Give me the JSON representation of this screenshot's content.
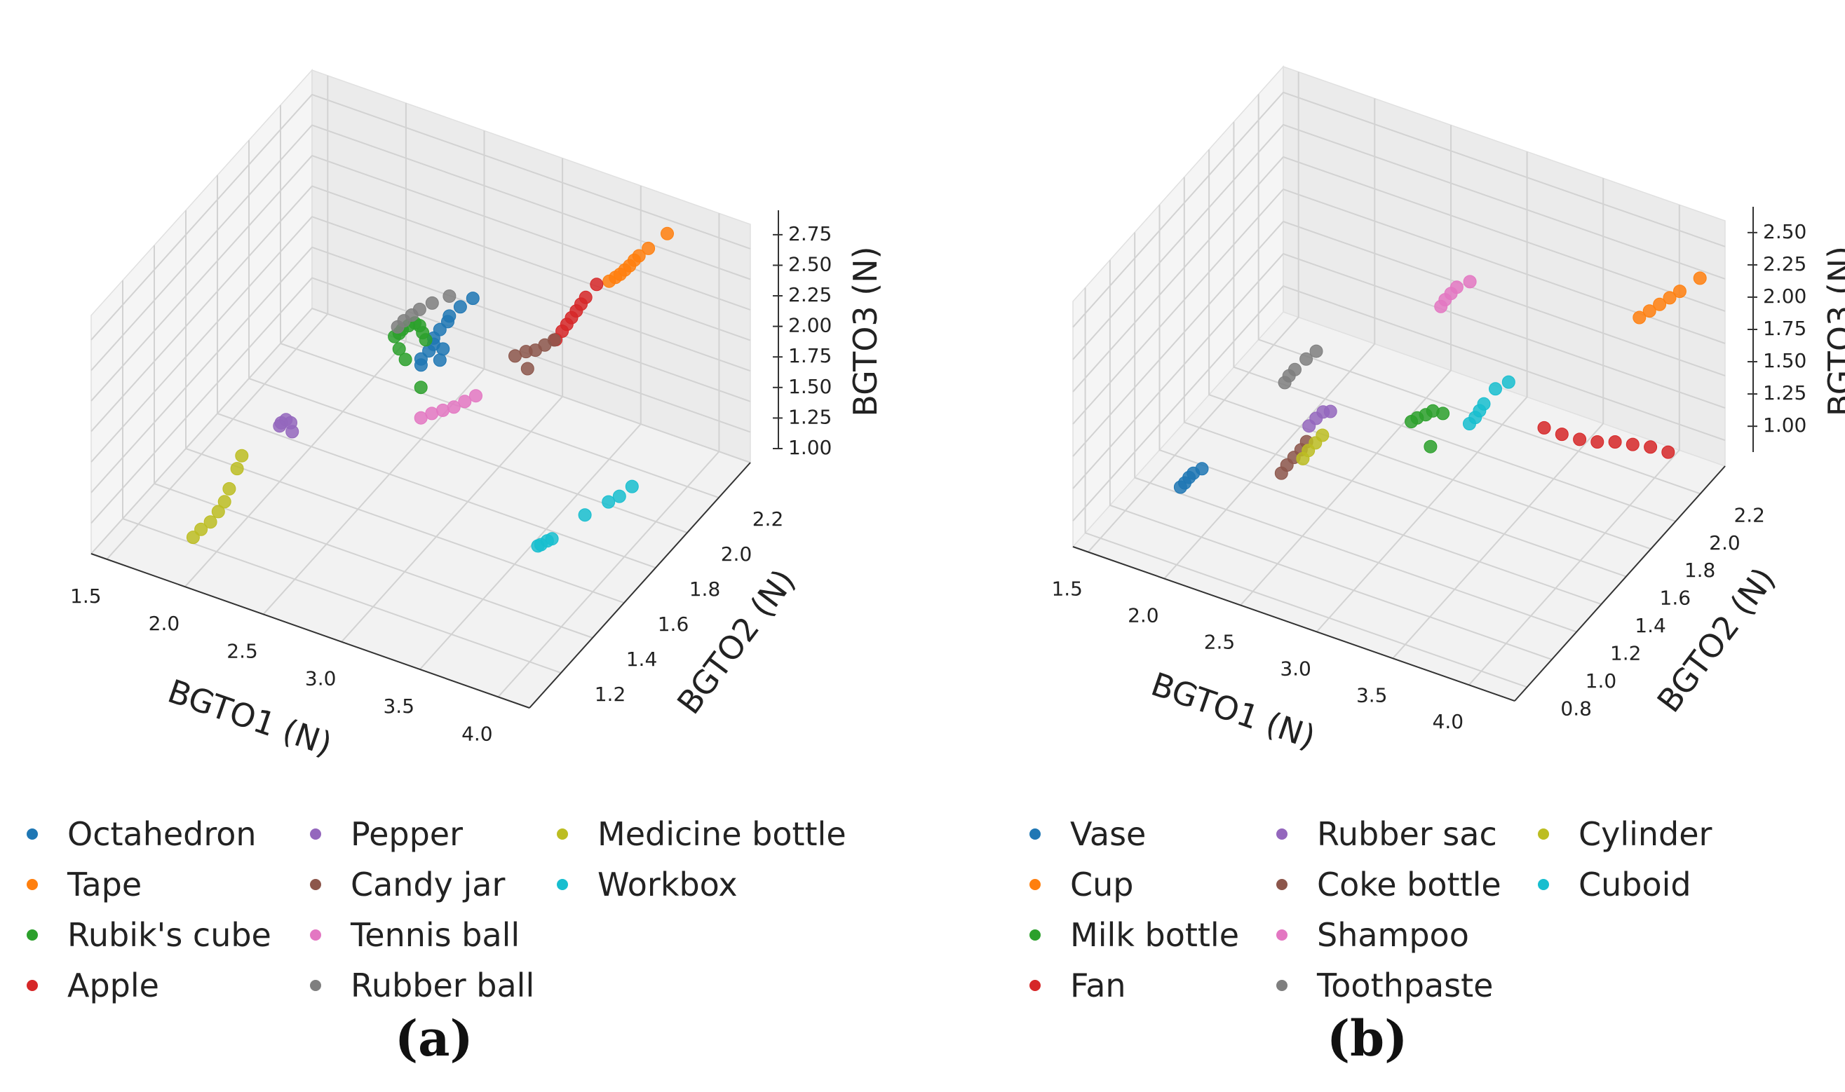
{
  "chart_data": [
    {
      "type": "scatter3d",
      "panel": "(a)",
      "xlabel": "BGTO1 (N)",
      "ylabel": "BGTO2 (N)",
      "zlabel": "BGTO3 (N)",
      "xlim": [
        1.4,
        4.2
      ],
      "ylim": [
        1.0,
        2.4
      ],
      "zlim": [
        1.0,
        2.95
      ],
      "xticks": [
        "1.5",
        "2.0",
        "2.5",
        "3.0",
        "3.5",
        "4.0"
      ],
      "yticks": [
        "1.2",
        "1.4",
        "1.6",
        "1.8",
        "2.0",
        "2.2"
      ],
      "zticks": [
        "1.00",
        "1.25",
        "1.50",
        "1.75",
        "2.00",
        "2.25",
        "2.50",
        "2.75"
      ],
      "series": [
        {
          "name": "Octahedron",
          "color": "#1f77b4",
          "points": [
            [
              2.55,
              1.95,
              1.7
            ],
            [
              2.55,
              1.95,
              1.75
            ],
            [
              2.58,
              1.97,
              1.8
            ],
            [
              2.6,
              1.98,
              1.85
            ],
            [
              2.6,
              1.98,
              1.9
            ],
            [
              2.62,
              2.0,
              1.95
            ],
            [
              2.65,
              2.02,
              2.0
            ],
            [
              2.66,
              2.02,
              2.05
            ],
            [
              2.7,
              2.05,
              2.1
            ],
            [
              2.62,
              2.0,
              1.7
            ],
            [
              2.64,
              2.0,
              1.8
            ],
            [
              2.75,
              2.08,
              2.15
            ]
          ]
        },
        {
          "name": "Tape",
          "color": "#ff7f0e",
          "points": [
            [
              3.55,
              2.15,
              2.55
            ],
            [
              3.58,
              2.16,
              2.58
            ],
            [
              3.6,
              2.17,
              2.6
            ],
            [
              3.62,
              2.18,
              2.63
            ],
            [
              3.64,
              2.19,
              2.66
            ],
            [
              3.66,
              2.2,
              2.7
            ],
            [
              3.68,
              2.21,
              2.73
            ],
            [
              3.72,
              2.23,
              2.78
            ],
            [
              3.8,
              2.27,
              2.88
            ]
          ]
        },
        {
          "name": "Rubik's cube",
          "color": "#2ca02c",
          "points": [
            [
              2.35,
              1.98,
              1.8
            ],
            [
              2.38,
              1.98,
              1.84
            ],
            [
              2.4,
              1.98,
              1.88
            ],
            [
              2.44,
              1.98,
              1.93
            ],
            [
              2.48,
              1.98,
              1.97
            ],
            [
              2.52,
              1.97,
              1.98
            ],
            [
              2.55,
              1.96,
              1.95
            ],
            [
              2.58,
              1.95,
              1.92
            ],
            [
              2.4,
              1.96,
              1.75
            ],
            [
              2.45,
              1.95,
              1.7
            ],
            [
              2.7,
              1.8,
              1.8
            ]
          ]
        },
        {
          "name": "Apple",
          "color": "#d62728",
          "points": [
            [
              3.28,
              2.08,
              2.05
            ],
            [
              3.3,
              2.1,
              2.1
            ],
            [
              3.32,
              2.11,
              2.15
            ],
            [
              3.34,
              2.12,
              2.2
            ],
            [
              3.36,
              2.13,
              2.25
            ],
            [
              3.38,
              2.14,
              2.3
            ],
            [
              3.4,
              2.15,
              2.35
            ],
            [
              3.45,
              2.17,
              2.45
            ]
          ]
        },
        {
          "name": "Pepper",
          "color": "#9467bd",
          "points": [
            [
              2.05,
              1.55,
              1.55
            ],
            [
              2.06,
              1.55,
              1.58
            ],
            [
              2.08,
              1.56,
              1.6
            ],
            [
              2.1,
              1.57,
              1.57
            ],
            [
              2.12,
              1.56,
              1.52
            ]
          ]
        },
        {
          "name": "Candy jar",
          "color": "#8c564b",
          "points": [
            [
              3.1,
              2.0,
              1.95
            ],
            [
              3.15,
              2.02,
              1.98
            ],
            [
              3.2,
              2.03,
              2.0
            ],
            [
              3.25,
              2.04,
              2.05
            ],
            [
              3.3,
              2.05,
              2.1
            ],
            [
              3.2,
              1.98,
              1.92
            ]
          ]
        },
        {
          "name": "Tennis ball",
          "color": "#e377c2",
          "points": [
            [
              2.7,
              1.8,
              1.55
            ],
            [
              2.75,
              1.82,
              1.58
            ],
            [
              2.8,
              1.84,
              1.6
            ],
            [
              2.85,
              1.86,
              1.62
            ],
            [
              2.9,
              1.88,
              1.66
            ],
            [
              2.95,
              1.9,
              1.7
            ]
          ]
        },
        {
          "name": "Rubber ball",
          "color": "#7f7f7f",
          "points": [
            [
              2.35,
              2.0,
              1.85
            ],
            [
              2.38,
              2.01,
              1.9
            ],
            [
              2.42,
              2.02,
              1.95
            ],
            [
              2.46,
              2.03,
              2.0
            ],
            [
              2.52,
              2.05,
              2.05
            ],
            [
              2.6,
              2.08,
              2.1
            ]
          ]
        },
        {
          "name": "Medicine bottle",
          "color": "#bcbd22",
          "points": [
            [
              1.85,
              1.2,
              1.05
            ],
            [
              1.88,
              1.22,
              1.1
            ],
            [
              1.92,
              1.24,
              1.15
            ],
            [
              1.95,
              1.26,
              1.22
            ],
            [
              1.98,
              1.27,
              1.3
            ],
            [
              2.0,
              1.28,
              1.4
            ],
            [
              2.03,
              1.3,
              1.55
            ],
            [
              2.05,
              1.31,
              1.65
            ]
          ]
        },
        {
          "name": "Workbox",
          "color": "#17becf",
          "points": [
            [
              3.8,
              1.45,
              1.5
            ],
            [
              3.82,
              1.45,
              1.52
            ],
            [
              3.85,
              1.46,
              1.55
            ],
            [
              3.88,
              1.46,
              1.58
            ],
            [
              4.0,
              1.55,
              1.7
            ],
            [
              4.1,
              1.6,
              1.78
            ],
            [
              4.15,
              1.62,
              1.82
            ],
            [
              4.2,
              1.65,
              1.88
            ]
          ]
        }
      ]
    },
    {
      "type": "scatter3d",
      "panel": "(b)",
      "xlabel": "BGTO1 (N)",
      "ylabel": "BGTO2 (N)",
      "zlabel": "BGTO3 (N)",
      "xlim": [
        1.4,
        4.3
      ],
      "ylim": [
        0.7,
        2.4
      ],
      "zlim": [
        0.8,
        2.7
      ],
      "xticks": [
        "1.5",
        "2.0",
        "2.5",
        "3.0",
        "3.5",
        "4.0"
      ],
      "yticks": [
        "0.8",
        "1.0",
        "1.2",
        "1.4",
        "1.6",
        "1.8",
        "2.0",
        "2.2"
      ],
      "zticks": [
        "1.00",
        "1.25",
        "1.50",
        "1.75",
        "2.00",
        "2.25",
        "2.50"
      ],
      "series": [
        {
          "name": "Vase",
          "color": "#1f77b4",
          "points": [
            [
              1.7,
              1.2,
              0.85
            ],
            [
              1.72,
              1.21,
              0.88
            ],
            [
              1.74,
              1.22,
              0.92
            ],
            [
              1.76,
              1.23,
              0.95
            ],
            [
              1.8,
              1.25,
              0.98
            ]
          ]
        },
        {
          "name": "Cup",
          "color": "#ff7f0e",
          "points": [
            [
              3.9,
              2.2,
              2.0
            ],
            [
              3.95,
              2.22,
              2.05
            ],
            [
              4.0,
              2.24,
              2.1
            ],
            [
              4.05,
              2.26,
              2.15
            ],
            [
              4.1,
              2.28,
              2.2
            ],
            [
              4.2,
              2.32,
              2.3
            ]
          ]
        },
        {
          "name": "Milk bottle",
          "color": "#2ca02c",
          "points": [
            [
              2.85,
              1.65,
              1.35
            ],
            [
              2.88,
              1.66,
              1.38
            ],
            [
              2.92,
              1.68,
              1.4
            ],
            [
              2.95,
              1.7,
              1.42
            ],
            [
              3.0,
              1.72,
              1.4
            ],
            [
              3.0,
              1.62,
              1.25
            ]
          ]
        },
        {
          "name": "Fan",
          "color": "#d62728",
          "points": [
            [
              3.6,
              1.8,
              1.45
            ],
            [
              3.7,
              1.82,
              1.42
            ],
            [
              3.8,
              1.84,
              1.4
            ],
            [
              3.9,
              1.86,
              1.4
            ],
            [
              4.0,
              1.88,
              1.42
            ],
            [
              4.1,
              1.9,
              1.42
            ],
            [
              4.2,
              1.92,
              1.42
            ],
            [
              4.3,
              1.94,
              1.4
            ]
          ]
        },
        {
          "name": "Rubber sac",
          "color": "#9467bd",
          "points": [
            [
              2.3,
              1.5,
              1.25
            ],
            [
              2.33,
              1.52,
              1.3
            ],
            [
              2.36,
              1.54,
              1.34
            ],
            [
              2.4,
              1.55,
              1.35
            ]
          ]
        },
        {
          "name": "Coke bottle",
          "color": "#8c564b",
          "points": [
            [
              2.2,
              1.4,
              0.95
            ],
            [
              2.22,
              1.42,
              1.0
            ],
            [
              2.25,
              1.44,
              1.05
            ],
            [
              2.28,
              1.46,
              1.1
            ],
            [
              2.3,
              1.48,
              1.15
            ]
          ]
        },
        {
          "name": "Shampoo",
          "color": "#e377c2",
          "points": [
            [
              2.8,
              1.95,
              1.9
            ],
            [
              2.82,
              1.96,
              1.95
            ],
            [
              2.85,
              1.97,
              2.0
            ],
            [
              2.88,
              1.98,
              2.05
            ],
            [
              2.95,
              2.0,
              2.1
            ]
          ]
        },
        {
          "name": "Toothpaste",
          "color": "#7f7f7f",
          "points": [
            [
              2.1,
              1.55,
              1.45
            ],
            [
              2.12,
              1.56,
              1.5
            ],
            [
              2.15,
              1.57,
              1.55
            ],
            [
              2.2,
              1.6,
              1.62
            ],
            [
              2.25,
              1.62,
              1.68
            ]
          ]
        },
        {
          "name": "Cylinder",
          "color": "#bcbd22",
          "points": [
            [
              2.3,
              1.45,
              1.05
            ],
            [
              2.32,
              1.47,
              1.1
            ],
            [
              2.35,
              1.49,
              1.15
            ],
            [
              2.38,
              1.51,
              1.2
            ]
          ]
        },
        {
          "name": "Cuboid",
          "color": "#17becf",
          "points": [
            [
              3.15,
              1.75,
              1.35
            ],
            [
              3.18,
              1.76,
              1.4
            ],
            [
              3.2,
              1.77,
              1.45
            ],
            [
              3.22,
              1.78,
              1.5
            ],
            [
              3.28,
              1.8,
              1.62
            ],
            [
              3.35,
              1.82,
              1.68
            ]
          ]
        }
      ]
    }
  ],
  "captions": {
    "a": "(a)",
    "b": "(b)"
  }
}
